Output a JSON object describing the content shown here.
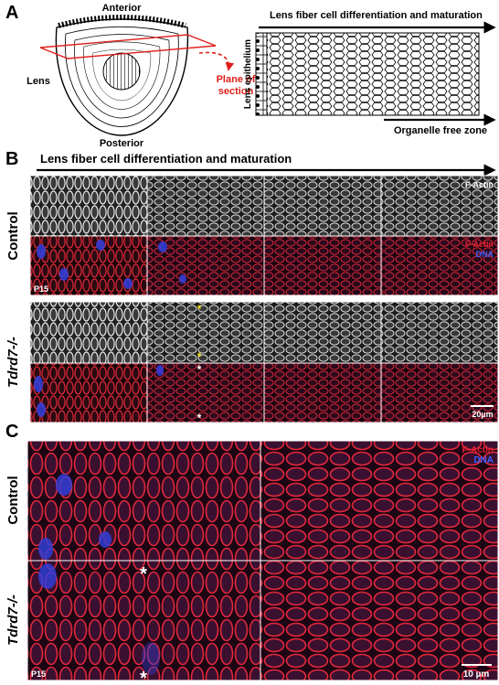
{
  "panel_a": {
    "label": "A",
    "lens_diagram": {
      "anterior": "Anterior",
      "lens": "Lens",
      "posterior": "Posterior",
      "plane": [
        "Plane of",
        "section"
      ]
    },
    "fiber_diagram": {
      "title": "Lens fiber cell differentiation and maturation",
      "epithelium": "Lens epithelium",
      "organelle_free": "Organelle free zone"
    }
  },
  "panel_b": {
    "label": "B",
    "title": "Lens fiber cell differentiation and maturation",
    "rows": [
      "Control",
      "Tdrd7-/-"
    ],
    "stain_gray": "F-Actin",
    "stain_red": "F-Actin",
    "stain_blue": "DNA",
    "age": "P15",
    "asterisks": [
      "*",
      "*",
      "*",
      "*"
    ],
    "scale_bar": "20µm"
  },
  "panel_c": {
    "label": "C",
    "rows": [
      "Control",
      "Tdrd7-/-"
    ],
    "stain_red": "F-Actin",
    "stain_blue": "DNA",
    "age": "P15",
    "asterisks": [
      "*",
      "*"
    ],
    "scale_bar": "10 µm"
  }
}
